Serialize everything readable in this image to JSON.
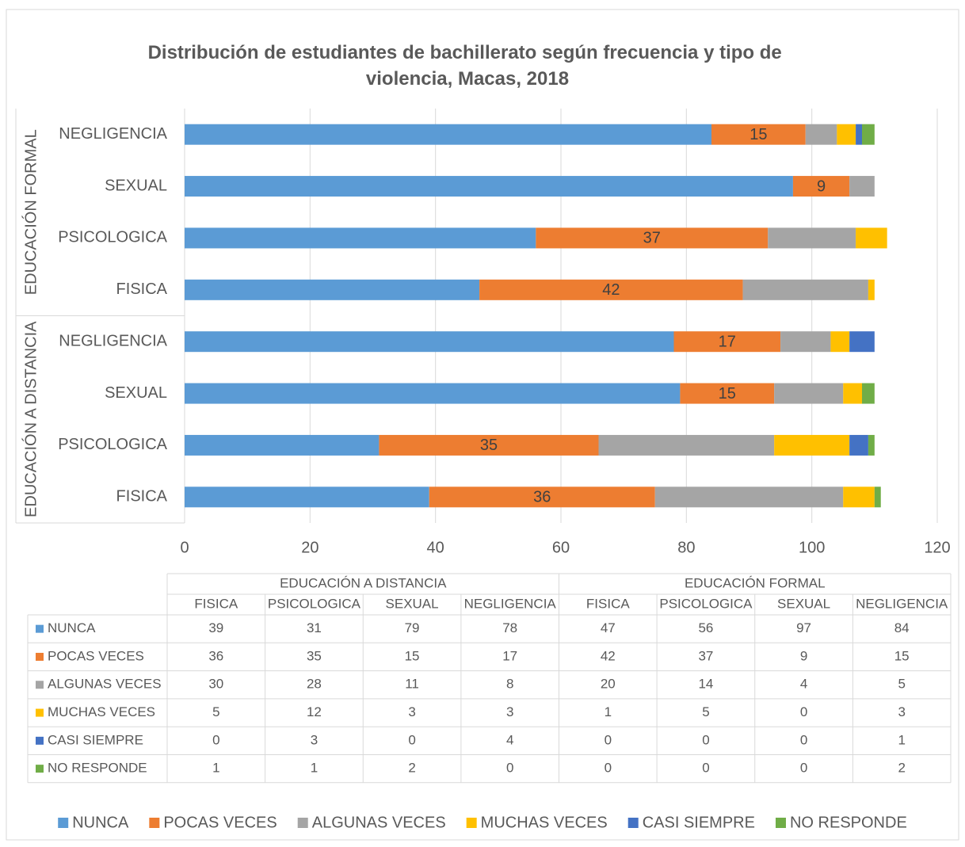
{
  "chart_data": {
    "type": "stacked_bar_horizontal",
    "title": "Distribución de estudiantes de bachillerato según frecuencia y tipo de violencia, Macas,  2018",
    "groups": [
      {
        "label": "EDUCACIÓN A DISTANCIA",
        "categories": [
          "FISICA",
          "PSICOLOGICA",
          "SEXUAL",
          "NEGLIGENCIA"
        ]
      },
      {
        "label": "EDUCACIÓN FORMAL",
        "categories": [
          "FISICA",
          "PSICOLOGICA",
          "SEXUAL",
          "NEGLIGENCIA"
        ]
      }
    ],
    "series": [
      {
        "name": "NUNCA",
        "color": "#5b9bd5",
        "values": [
          39,
          31,
          79,
          78,
          47,
          56,
          97,
          84
        ]
      },
      {
        "name": "POCAS VECES",
        "color": "#ed7d31",
        "values": [
          36,
          35,
          15,
          17,
          42,
          37,
          9,
          15
        ],
        "data_labels": true
      },
      {
        "name": "ALGUNAS VECES",
        "color": "#a5a5a5",
        "values": [
          30,
          28,
          11,
          8,
          20,
          14,
          4,
          5
        ]
      },
      {
        "name": "MUCHAS VECES",
        "color": "#ffc000",
        "values": [
          5,
          12,
          3,
          3,
          1,
          5,
          0,
          3
        ]
      },
      {
        "name": "CASI SIEMPRE",
        "color": "#4472c4",
        "values": [
          0,
          3,
          0,
          4,
          0,
          0,
          0,
          1
        ]
      },
      {
        "name": "NO RESPONDE",
        "color": "#70ad47",
        "values": [
          1,
          1,
          2,
          0,
          0,
          0,
          0,
          2
        ]
      }
    ],
    "xlim": [
      0,
      120
    ],
    "xticks": [
      0,
      20,
      40,
      60,
      80,
      100,
      120
    ],
    "grid": true,
    "legend": "bottom",
    "data_table": true
  }
}
